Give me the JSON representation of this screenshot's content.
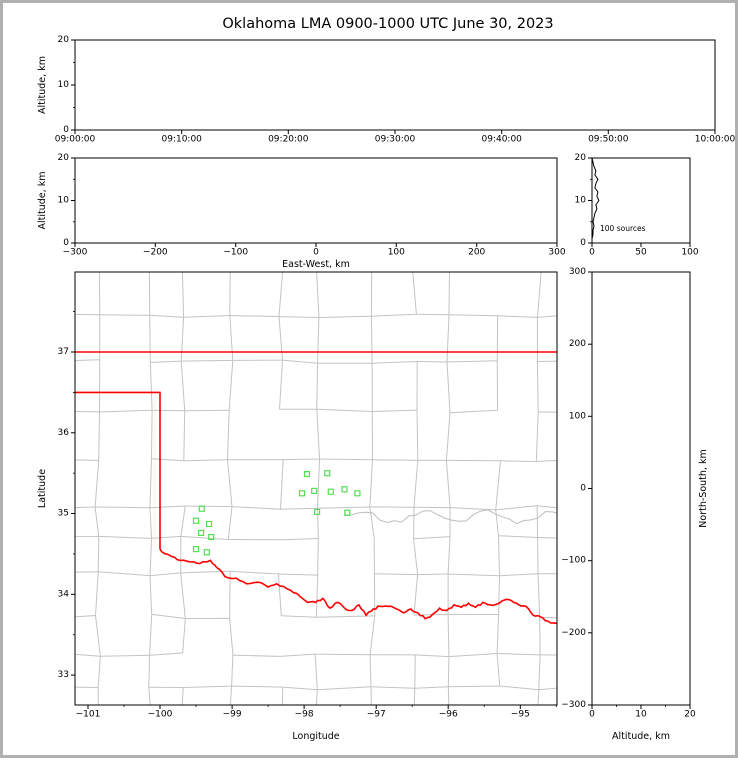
{
  "title": "Oklahoma LMA 0900-1000 UTC June 30, 2023",
  "colors": {
    "background": "#ffffff",
    "frame": "#b0b0b0",
    "axis": "#000000",
    "state_border": "#ff0000",
    "county_lines": "#c3c3c3",
    "river": "#bdbdbd",
    "station_marker": "#55dd55",
    "histogram_line": "#000000"
  },
  "chart_data": [
    {
      "id": "time_altitude",
      "type": "scatter",
      "xlabel": "",
      "ylabel": "Altitude, km",
      "x_tick_labels": [
        "09:00:00",
        "09:10:00",
        "09:20:00",
        "09:30:00",
        "09:40:00",
        "09:50:00",
        "10:00:00"
      ],
      "ylim": [
        0,
        20
      ],
      "y_ticks": [
        0,
        10,
        20
      ],
      "y_minor_ticks": [
        5,
        15
      ],
      "points": []
    },
    {
      "id": "ew_altitude",
      "type": "scatter",
      "xlabel": "East-West, km",
      "ylabel": "Altitude, km",
      "xlim": [
        -300,
        300
      ],
      "x_ticks": [
        -300,
        -200,
        -100,
        0,
        100,
        200,
        300
      ],
      "ylim": [
        0,
        20
      ],
      "y_ticks": [
        0,
        10,
        20
      ],
      "y_minor_ticks": [
        5,
        15
      ],
      "points": []
    },
    {
      "id": "altitude_histogram",
      "type": "line",
      "annotation": "100 sources",
      "xlim": [
        0,
        100
      ],
      "x_ticks": [
        0,
        50,
        100
      ],
      "ylim": [
        0,
        20
      ],
      "y_ticks": [
        0,
        10,
        20
      ],
      "y_minor_ticks": [
        5,
        15
      ],
      "profile_alt_km": [
        0,
        1,
        2,
        3,
        4,
        5,
        6,
        7,
        8,
        9,
        10,
        11,
        12,
        13,
        14,
        15,
        16,
        17,
        18,
        19,
        20
      ],
      "profile_counts": [
        0,
        0,
        1,
        1,
        2,
        1,
        2,
        3,
        5,
        4,
        7,
        5,
        6,
        3,
        4,
        6,
        3,
        4,
        2,
        1,
        0
      ]
    },
    {
      "id": "map",
      "type": "scatter",
      "xlabel": "Longitude",
      "ylabel": "Latitude",
      "xlim": [
        -101.18,
        -94.49
      ],
      "x_ticks": [
        -101,
        -100,
        -99,
        -98,
        -97,
        -96,
        -95
      ],
      "x_minor_ticks": [
        -100.5,
        -99.5,
        -98.5,
        -97.5,
        -96.5,
        -95.5,
        -94.5
      ],
      "ylim": [
        32.63,
        37.99
      ],
      "y_ticks": [
        33,
        34,
        35,
        36,
        37
      ],
      "y_minor_ticks": [
        33.5,
        34.5,
        35.5,
        36.5,
        37.5
      ],
      "stations_lon_lat": [
        [
          -98.03,
          35.25
        ],
        [
          -97.96,
          35.49
        ],
        [
          -97.68,
          35.5
        ],
        [
          -97.86,
          35.28
        ],
        [
          -97.63,
          35.27
        ],
        [
          -97.44,
          35.3
        ],
        [
          -97.26,
          35.25
        ],
        [
          -97.82,
          35.02
        ],
        [
          -97.4,
          35.01
        ],
        [
          -99.42,
          35.06
        ],
        [
          -99.5,
          34.91
        ],
        [
          -99.32,
          34.87
        ],
        [
          -99.43,
          34.76
        ],
        [
          -99.29,
          34.71
        ],
        [
          -99.5,
          34.56
        ],
        [
          -99.35,
          34.52
        ]
      ],
      "state_border": {
        "kansas_border_lat": 37.0,
        "panhandle_south_border": [
          [
            -101.18,
            36.5
          ],
          [
            -100.0,
            36.5
          ]
        ],
        "west_border": [
          [
            -100.0,
            36.5
          ],
          [
            -100.0,
            34.56
          ]
        ],
        "red_river_border": [
          [
            -100.0,
            34.56
          ],
          [
            -99.93,
            34.5
          ],
          [
            -99.84,
            34.47
          ],
          [
            -99.72,
            34.42
          ],
          [
            -99.58,
            34.4
          ],
          [
            -99.45,
            34.38
          ],
          [
            -99.3,
            34.42
          ],
          [
            -99.21,
            34.33
          ],
          [
            -99.1,
            34.22
          ],
          [
            -98.94,
            34.2
          ],
          [
            -98.8,
            34.13
          ],
          [
            -98.64,
            34.15
          ],
          [
            -98.5,
            34.09
          ],
          [
            -98.38,
            34.13
          ],
          [
            -98.24,
            34.07
          ],
          [
            -98.1,
            34.01
          ],
          [
            -97.95,
            33.9
          ],
          [
            -97.84,
            33.9
          ],
          [
            -97.74,
            33.95
          ],
          [
            -97.64,
            33.83
          ],
          [
            -97.54,
            33.9
          ],
          [
            -97.44,
            33.83
          ],
          [
            -97.34,
            33.8
          ],
          [
            -97.24,
            33.87
          ],
          [
            -97.14,
            33.74
          ],
          [
            -97.04,
            33.82
          ],
          [
            -96.94,
            33.85
          ],
          [
            -96.83,
            33.85
          ],
          [
            -96.72,
            33.82
          ],
          [
            -96.62,
            33.77
          ],
          [
            -96.52,
            33.82
          ],
          [
            -96.42,
            33.77
          ],
          [
            -96.32,
            33.7
          ],
          [
            -96.22,
            33.75
          ],
          [
            -96.12,
            33.83
          ],
          [
            -96.02,
            33.8
          ],
          [
            -95.92,
            33.87
          ],
          [
            -95.82,
            33.84
          ],
          [
            -95.72,
            33.89
          ],
          [
            -95.62,
            33.84
          ],
          [
            -95.52,
            33.9
          ],
          [
            -95.42,
            33.87
          ],
          [
            -95.32,
            33.88
          ],
          [
            -95.22,
            33.93
          ],
          [
            -95.12,
            33.92
          ],
          [
            -95.02,
            33.87
          ],
          [
            -94.92,
            33.85
          ],
          [
            -94.82,
            33.74
          ],
          [
            -94.72,
            33.72
          ],
          [
            -94.62,
            33.67
          ],
          [
            -94.49,
            33.64
          ]
        ]
      }
    },
    {
      "id": "ns_altitude",
      "type": "scatter",
      "xlabel": "Altitude, km",
      "ylabel": "North-South, km",
      "xlim": [
        0,
        20
      ],
      "x_ticks": [
        0,
        10,
        20
      ],
      "x_minor_ticks": [
        5,
        15
      ],
      "ylim": [
        -300,
        300
      ],
      "y_ticks": [
        300,
        200,
        100,
        0,
        -100,
        -200,
        -300
      ],
      "points": []
    }
  ]
}
